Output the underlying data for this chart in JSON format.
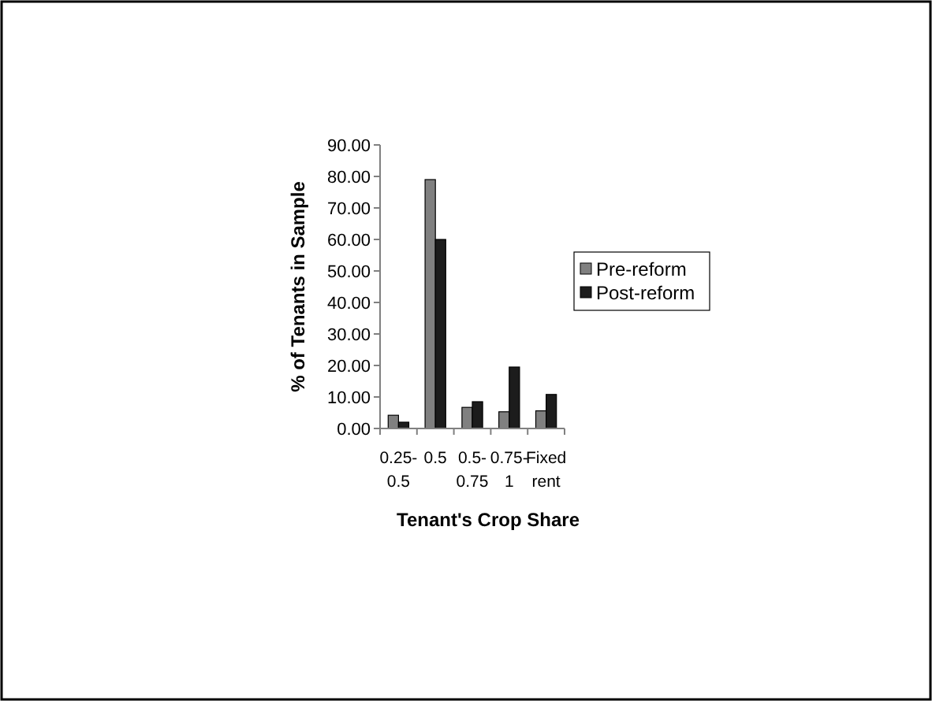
{
  "chart_data": {
    "type": "bar",
    "xlabel": "Tenant's Crop Share",
    "ylabel": "% of Tenants in Sample",
    "categories": [
      "0.25-0.5",
      "0.5",
      "0.5-0.75",
      "0.75-1",
      "Fixed rent"
    ],
    "series": [
      {
        "name": "Pre-reform",
        "color": "#808080",
        "values": [
          4.2,
          79,
          6.7,
          5.3,
          5.6
        ]
      },
      {
        "name": "Post-reform",
        "color": "#1c1c1c",
        "values": [
          2.0,
          60,
          8.5,
          19.5,
          10.8
        ]
      }
    ],
    "ylim": [
      0,
      90
    ],
    "yticks": [
      {
        "value": 0,
        "label": "0.00"
      },
      {
        "value": 10,
        "label": "10.00"
      },
      {
        "value": 20,
        "label": "20.00"
      },
      {
        "value": 30,
        "label": "30.00"
      },
      {
        "value": 40,
        "label": "40.00"
      },
      {
        "value": 50,
        "label": "50.00"
      },
      {
        "value": 60,
        "label": "60.00"
      },
      {
        "value": 70,
        "label": "70.00"
      },
      {
        "value": 80,
        "label": "80.00"
      },
      {
        "value": 90,
        "label": "90.00"
      }
    ],
    "legend": "right",
    "grid": false
  }
}
